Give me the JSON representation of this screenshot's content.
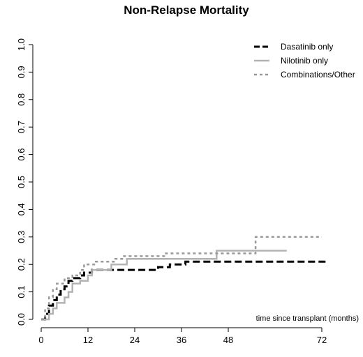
{
  "chart_data": {
    "type": "line",
    "step": true,
    "title": "Non-Relapse Mortality",
    "annotation": "time since transplant (months)",
    "xlabel": "",
    "ylabel": "",
    "xlim": [
      0,
      72
    ],
    "ylim": [
      0,
      1
    ],
    "xticks": [
      0,
      12,
      24,
      36,
      48,
      72
    ],
    "yticks": [
      "0.0",
      "0.1",
      "0.2",
      "0.3",
      "0.4",
      "0.5",
      "0.6",
      "0.7",
      "0.8",
      "0.9",
      "1.0"
    ],
    "grid": false,
    "legend_position": "top-right",
    "series": [
      {
        "name": "Dasatinib only",
        "style": "dashed",
        "color": "#000000",
        "points": [
          [
            0,
            0
          ],
          [
            1,
            0.02
          ],
          [
            2,
            0.05
          ],
          [
            3,
            0.07
          ],
          [
            4,
            0.09
          ],
          [
            5,
            0.11
          ],
          [
            6,
            0.12
          ],
          [
            7,
            0.14
          ],
          [
            8,
            0.15
          ],
          [
            9,
            0.15
          ],
          [
            10,
            0.16
          ],
          [
            11,
            0.17
          ],
          [
            13,
            0.18
          ],
          [
            20,
            0.18
          ],
          [
            30,
            0.19
          ],
          [
            33,
            0.2
          ],
          [
            37,
            0.21
          ],
          [
            73,
            0.21
          ]
        ]
      },
      {
        "name": "Nilotinib only",
        "style": "solid",
        "color": "#b3b3b3",
        "points": [
          [
            0,
            0
          ],
          [
            2,
            0.02
          ],
          [
            3,
            0.04
          ],
          [
            4,
            0.06
          ],
          [
            6,
            0.08
          ],
          [
            7,
            0.1
          ],
          [
            8,
            0.13
          ],
          [
            10,
            0.14
          ],
          [
            12,
            0.16
          ],
          [
            13,
            0.18
          ],
          [
            18,
            0.2
          ],
          [
            22,
            0.22
          ],
          [
            45,
            0.25
          ],
          [
            63,
            0.25
          ]
        ]
      },
      {
        "name": "Combinations/Other",
        "style": "dotted",
        "color": "#999999",
        "points": [
          [
            0,
            0
          ],
          [
            1,
            0.04
          ],
          [
            2,
            0.08
          ],
          [
            3,
            0.11
          ],
          [
            4,
            0.13
          ],
          [
            6,
            0.15
          ],
          [
            8,
            0.16
          ],
          [
            10,
            0.18
          ],
          [
            11,
            0.2
          ],
          [
            14,
            0.21
          ],
          [
            19,
            0.22
          ],
          [
            21,
            0.23
          ],
          [
            30,
            0.23
          ],
          [
            32,
            0.24
          ],
          [
            55,
            0.24
          ],
          [
            55.01,
            0.3
          ],
          [
            72,
            0.3
          ]
        ]
      }
    ]
  }
}
